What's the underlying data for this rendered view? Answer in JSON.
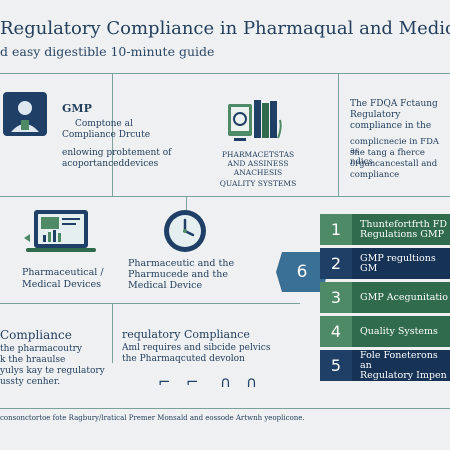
{
  "header": {
    "title": "Regulatory Compliance in Pharmaqual and Medical Device Indus",
    "subtitle": "d easy digestible 10-minute guide"
  },
  "gmp": {
    "heading": "GMP",
    "line1": "Comptone  al",
    "line2": "Compliance Drcute",
    "line3": "enlowing probtement of",
    "line4": "acoportanceddevices"
  },
  "center_top": {
    "line1": "PHARMACETSTAS",
    "line2": "AND ASSINESS",
    "line3": "ANACHESIS",
    "line4": "QUALITY SYSTEMS"
  },
  "fda": {
    "line1": "The FDQA Fctaung",
    "line2": "Regulatory",
    "line3": "compliance in the",
    "line4": "complicnecie in FDA as",
    "line5": "sne tang a fherce ndics",
    "line6": "organcancestall and",
    "line7": "compliance"
  },
  "devices": {
    "line1": "Pharmaceutical /",
    "line2": "Medical Devices"
  },
  "pharma_device": {
    "line1": "Pharmaceutic and the",
    "line2": "Pharmucede and the",
    "line3": "Medical Device"
  },
  "compliance": {
    "heading": "Compliance",
    "line1": "the pharmacoutry",
    "line2": "k the hraaulse",
    "line3": "yulys kay te regulatory",
    "line4": "ussty cenher."
  },
  "reg_compliance": {
    "heading": "requlatory Compliance",
    "line1": "Aml requires and sibcide pelvics",
    "line2": "the Pharmaqcuted devolon"
  },
  "hex_badge": "6",
  "steps": [
    {
      "num": "1",
      "label": "Thuntefortfrth FD\nRegulations GMP"
    },
    {
      "num": "2",
      "label": "GMP  regultions GM"
    },
    {
      "num": "3",
      "label": "GMP Acegunitatio"
    },
    {
      "num": "4",
      "label": "Quality Systems"
    },
    {
      "num": "5",
      "label": "Fole Foneterons an\nRegulatory Impen"
    }
  ],
  "footer": "consonctortoe fote Ragbury/lratical Premer Monsald and eossode Artwnh yeoplicone.",
  "colors": {
    "navy": "#1f3f66",
    "green": "#4e8a66",
    "line": "#7aa29a",
    "background": "#eef0f1"
  }
}
